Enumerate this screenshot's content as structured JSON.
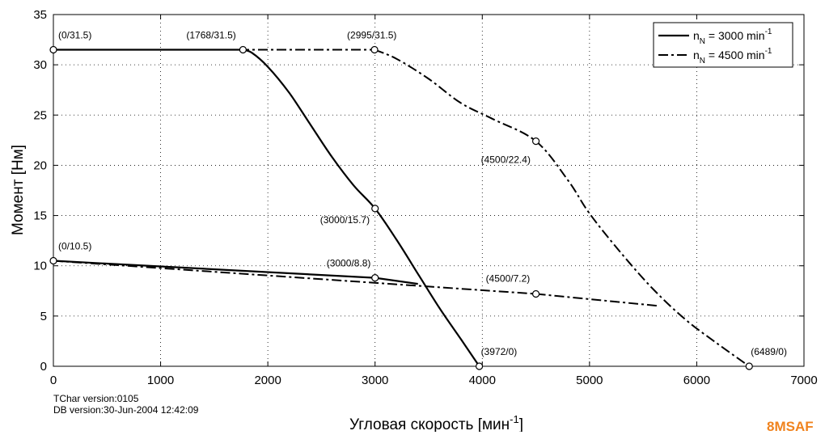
{
  "chart_data": {
    "type": "line",
    "xlabel_main": "Угловая скорость [мин",
    "xlabel_sup": "-1",
    "xlabel_end": "]",
    "ylabel": "Момент [Нм]",
    "xlim": [
      0,
      7000
    ],
    "ylim": [
      0,
      35
    ],
    "x_ticks": [
      "0",
      "1000",
      "2000",
      "3000",
      "4000",
      "5000",
      "6000",
      "7000"
    ],
    "y_ticks": [
      "0",
      "5",
      "10",
      "15",
      "20",
      "25",
      "30",
      "35"
    ],
    "grid": true,
    "legend_position": "top-right",
    "series": [
      {
        "name": "n_N = 3000 min^-1",
        "legend": {
          "main": "n",
          "sub": "N",
          "text": " = 3000 min",
          "sup": "-1"
        },
        "style": "solid",
        "peak": [
          [
            0,
            31.5
          ],
          [
            1768,
            31.5
          ],
          [
            1850,
            31.2
          ],
          [
            2000,
            29.8
          ],
          [
            2200,
            27.2
          ],
          [
            2400,
            24.0
          ],
          [
            2600,
            20.8
          ],
          [
            2800,
            18.0
          ],
          [
            3000,
            15.7
          ],
          [
            3200,
            12.6
          ],
          [
            3400,
            9.2
          ],
          [
            3600,
            5.8
          ],
          [
            3800,
            2.7
          ],
          [
            3972,
            0
          ]
        ],
        "continuous": [
          [
            0,
            10.5
          ],
          [
            3000,
            8.8
          ],
          [
            3400,
            8.2
          ]
        ]
      },
      {
        "name": "n_N = 4500 min^-1",
        "legend": {
          "main": "n",
          "sub": "N",
          "text": " = 4500 min",
          "sup": "-1"
        },
        "style": "dashdot",
        "peak": [
          [
            0,
            31.5
          ],
          [
            2995,
            31.5
          ],
          [
            3200,
            30.6
          ],
          [
            3500,
            28.6
          ],
          [
            3800,
            26.2
          ],
          [
            4100,
            24.6
          ],
          [
            4500,
            22.4
          ],
          [
            4800,
            18.5
          ],
          [
            5000,
            15.2
          ],
          [
            5300,
            11.2
          ],
          [
            5600,
            7.6
          ],
          [
            5900,
            4.6
          ],
          [
            6200,
            2.2
          ],
          [
            6489,
            0
          ]
        ],
        "continuous": [
          [
            0,
            10.5
          ],
          [
            4500,
            7.2
          ],
          [
            5650,
            6.0
          ]
        ]
      }
    ],
    "points": [
      {
        "x": 0,
        "y": 31.5,
        "label": "(0/31.5)"
      },
      {
        "x": 1768,
        "y": 31.5,
        "label": "(1768/31.5)"
      },
      {
        "x": 2995,
        "y": 31.5,
        "label": "(2995/31.5)"
      },
      {
        "x": 4500,
        "y": 22.4,
        "label": "(4500/22.4)"
      },
      {
        "x": 3000,
        "y": 15.7,
        "label": "(3000/15.7)"
      },
      {
        "x": 0,
        "y": 10.5,
        "label": "(0/10.5)"
      },
      {
        "x": 3000,
        "y": 8.8,
        "label": "(3000/8.8)"
      },
      {
        "x": 4500,
        "y": 7.2,
        "label": "(4500/7.2)"
      },
      {
        "x": 3972,
        "y": 0,
        "label": "(3972/0)"
      },
      {
        "x": 6489,
        "y": 0,
        "label": "(6489/0)"
      }
    ]
  },
  "footer": {
    "tchar_version": "TChar version:0105",
    "db_version": "DB version:30-Jun-2004 12:42:09"
  },
  "logo_text": "8MSAF"
}
